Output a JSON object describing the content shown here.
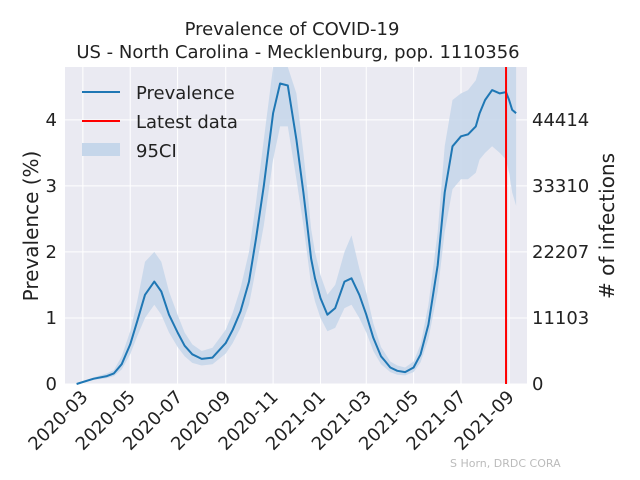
{
  "chart_data": {
    "type": "line",
    "title": "Prevalence of COVID-19",
    "subtitle": "US - North Carolina - Mecklenburg, pop. 1110356",
    "ylabel": "Prevalence (%)",
    "y2label": "# of infections",
    "xlim": [
      "2020-02-07",
      "2021-09-24"
    ],
    "ylim": [
      0,
      4.8
    ],
    "grid": true,
    "x_ticks": [
      "2020-03-01",
      "2020-05-01",
      "2020-07-01",
      "2020-09-01",
      "2020-11-01",
      "2021-01-01",
      "2021-03-01",
      "2021-05-01",
      "2021-07-01",
      "2021-09-01"
    ],
    "x_tick_labels": [
      "2020-03",
      "2020-05",
      "2020-07",
      "2020-09",
      "2020-11",
      "2021-01",
      "2021-03",
      "2021-05",
      "2021-07",
      "2021-09"
    ],
    "y_ticks": [
      0,
      1,
      2,
      3,
      4
    ],
    "y2_ticks": [
      0,
      1,
      2,
      3,
      4
    ],
    "y2_tick_labels": [
      "0",
      "11103",
      "22207",
      "33310",
      "44414"
    ],
    "latest_data_date": "2021-08-28",
    "legend": {
      "placement": "top-left",
      "entries": [
        "Prevalence",
        "Latest data",
        "95CI"
      ]
    },
    "colors": {
      "line": "#1f77b4",
      "ci": "#c5d6ea",
      "latest": "#ff0000",
      "background": "#eaeaf2"
    },
    "series": [
      {
        "name": "Prevalence",
        "x": [
          "2020-02-22",
          "2020-03-01",
          "2020-03-15",
          "2020-04-01",
          "2020-04-10",
          "2020-04-20",
          "2020-05-01",
          "2020-05-10",
          "2020-05-20",
          "2020-06-01",
          "2020-06-10",
          "2020-06-20",
          "2020-07-01",
          "2020-07-10",
          "2020-07-20",
          "2020-08-01",
          "2020-08-15",
          "2020-09-01",
          "2020-09-10",
          "2020-09-20",
          "2020-10-01",
          "2020-10-10",
          "2020-10-20",
          "2020-11-01",
          "2020-11-10",
          "2020-11-20",
          "2020-12-01",
          "2020-12-10",
          "2020-12-15",
          "2020-12-20",
          "2020-12-25",
          "2021-01-01",
          "2021-01-10",
          "2021-01-20",
          "2021-02-01",
          "2021-02-10",
          "2021-02-20",
          "2021-03-01",
          "2021-03-10",
          "2021-03-20",
          "2021-03-25",
          "2021-04-01",
          "2021-04-10",
          "2021-04-20",
          "2021-05-01",
          "2021-05-10",
          "2021-05-20",
          "2021-06-01",
          "2021-06-10",
          "2021-06-20",
          "2021-07-01",
          "2021-07-10",
          "2021-07-20",
          "2021-07-25",
          "2021-08-01",
          "2021-08-10",
          "2021-08-20",
          "2021-08-28",
          "2021-09-01",
          "2021-09-05",
          "2021-09-10"
        ],
        "y": [
          0.0,
          0.03,
          0.08,
          0.12,
          0.16,
          0.3,
          0.6,
          0.95,
          1.35,
          1.55,
          1.4,
          1.05,
          0.78,
          0.58,
          0.45,
          0.38,
          0.4,
          0.62,
          0.82,
          1.1,
          1.55,
          2.2,
          3.0,
          4.1,
          4.55,
          4.52,
          3.7,
          2.9,
          2.4,
          1.9,
          1.6,
          1.3,
          1.05,
          1.15,
          1.55,
          1.6,
          1.35,
          1.05,
          0.7,
          0.42,
          0.35,
          0.25,
          0.2,
          0.18,
          0.25,
          0.45,
          0.9,
          1.8,
          2.9,
          3.6,
          3.75,
          3.78,
          3.9,
          4.1,
          4.3,
          4.45,
          4.4,
          4.42,
          4.3,
          4.15,
          4.1
        ],
        "ci_lower": [
          0.0,
          0.02,
          0.06,
          0.09,
          0.12,
          0.22,
          0.45,
          0.72,
          1.0,
          1.2,
          1.05,
          0.78,
          0.56,
          0.42,
          0.32,
          0.28,
          0.3,
          0.46,
          0.62,
          0.85,
          1.2,
          1.75,
          2.4,
          3.4,
          3.9,
          3.9,
          3.1,
          2.4,
          1.95,
          1.5,
          1.25,
          1.0,
          0.8,
          0.85,
          1.15,
          1.2,
          1.0,
          0.78,
          0.5,
          0.3,
          0.25,
          0.18,
          0.14,
          0.13,
          0.18,
          0.33,
          0.68,
          1.4,
          2.3,
          2.95,
          3.1,
          3.1,
          3.2,
          3.4,
          3.5,
          3.6,
          3.5,
          3.4,
          3.2,
          2.9,
          2.7
        ],
        "ci_upper": [
          0.0,
          0.04,
          0.1,
          0.16,
          0.21,
          0.42,
          0.8,
          1.25,
          1.85,
          2.0,
          1.85,
          1.4,
          1.05,
          0.78,
          0.6,
          0.5,
          0.55,
          0.82,
          1.08,
          1.45,
          2.0,
          2.75,
          3.7,
          4.8,
          4.8,
          4.8,
          4.4,
          3.5,
          2.95,
          2.35,
          2.0,
          1.65,
          1.35,
          1.5,
          2.0,
          2.25,
          1.75,
          1.38,
          0.92,
          0.56,
          0.47,
          0.34,
          0.28,
          0.25,
          0.34,
          0.6,
          1.2,
          2.3,
          3.6,
          4.3,
          4.4,
          4.45,
          4.6,
          4.8,
          4.8,
          4.8,
          4.8,
          4.8,
          4.8,
          4.8,
          4.8
        ]
      }
    ],
    "credit": "S Horn, DRDC CORA"
  }
}
